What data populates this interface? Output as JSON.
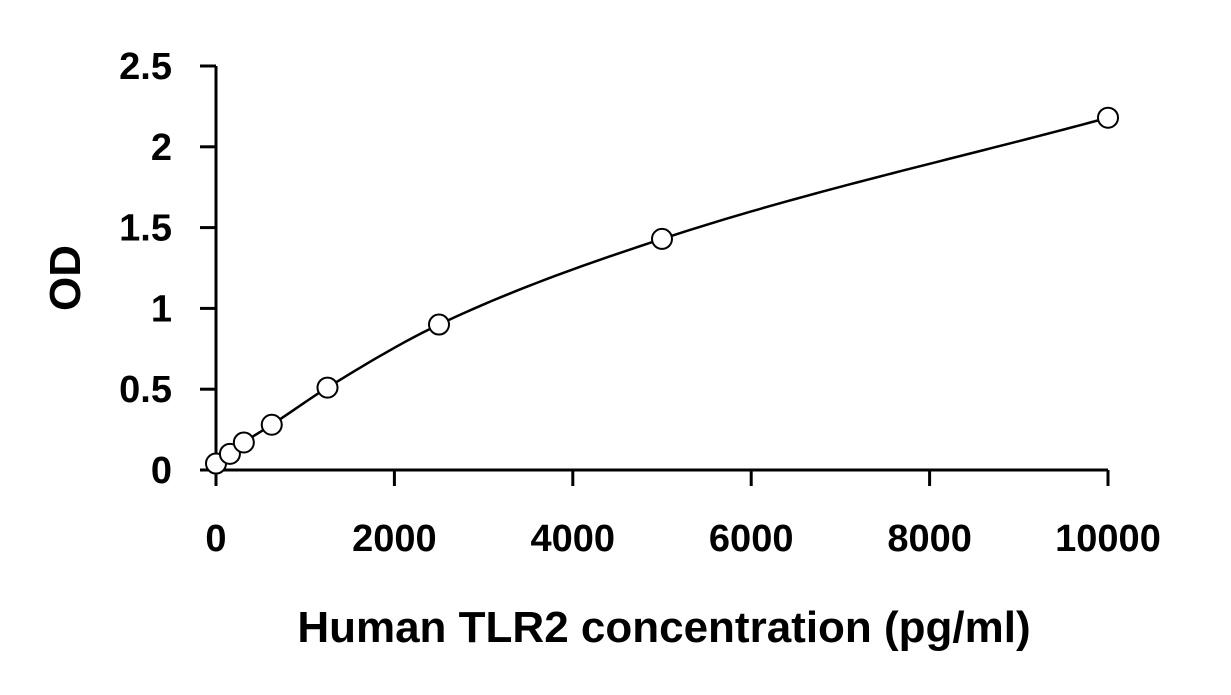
{
  "chart_data": {
    "type": "scatter",
    "xlabel": "Human TLR2 concentration (pg/ml)",
    "ylabel": "OD",
    "xlim": [
      0,
      10000
    ],
    "ylim": [
      0,
      2.5
    ],
    "x_ticks": [
      0,
      2000,
      4000,
      6000,
      8000,
      10000
    ],
    "x_tick_labels": [
      "0",
      "2000",
      "4000",
      "6000",
      "8000",
      "10000"
    ],
    "y_ticks": [
      0,
      0.5,
      1,
      1.5,
      2,
      2.5
    ],
    "y_tick_labels": [
      "0",
      "0.5",
      "1",
      "1.5",
      "2",
      "2.5"
    ],
    "grid": false,
    "legend": "none",
    "series": [
      {
        "marker": "open-circle",
        "line": "smooth-fit",
        "x": [
          0,
          156,
          312,
          625,
          1250,
          2500,
          5000,
          10000
        ],
        "y": [
          0.04,
          0.1,
          0.17,
          0.28,
          0.51,
          0.9,
          1.43,
          2.18
        ]
      }
    ],
    "colors": {
      "line": "#000000",
      "marker_edge": "#000000",
      "marker_fill": "#ffffff",
      "background": "#ffffff"
    }
  }
}
